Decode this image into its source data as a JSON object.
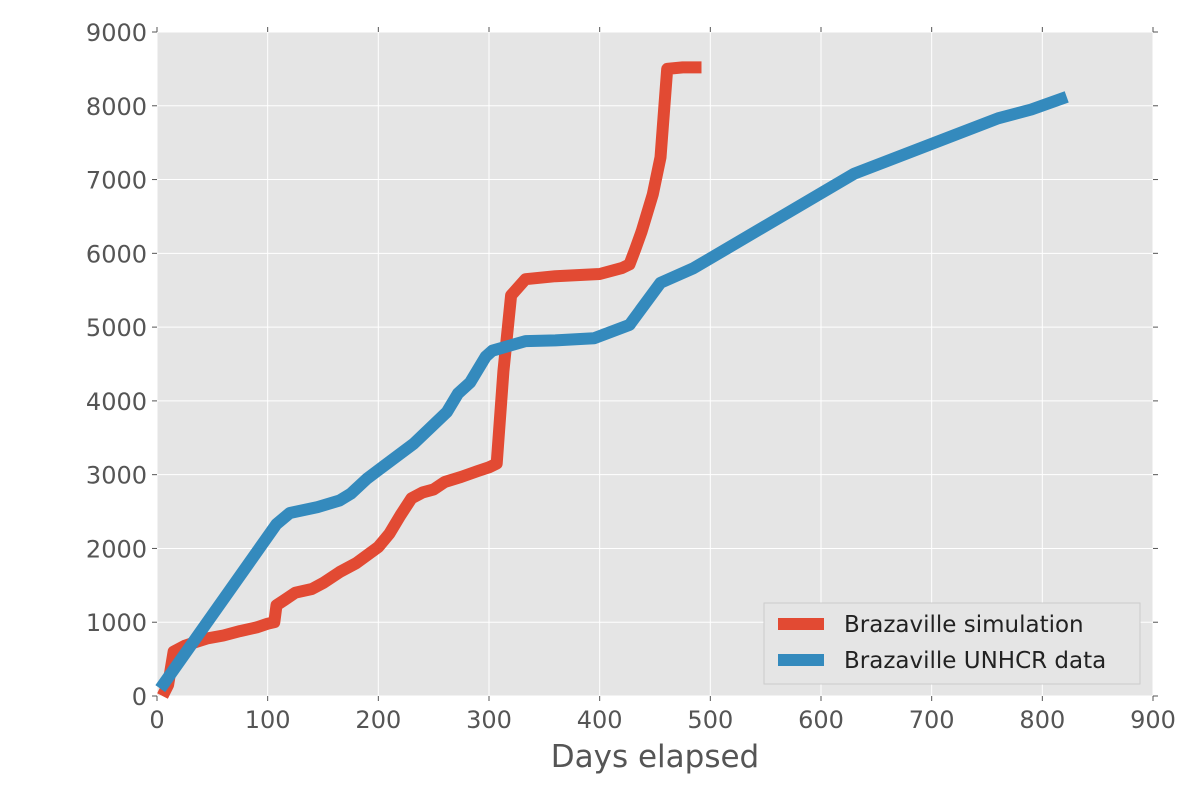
{
  "chart_data": {
    "type": "line",
    "title": "",
    "xlabel": "Days elapsed",
    "ylabel": "",
    "xlim": [
      0,
      900
    ],
    "ylim": [
      0,
      9000
    ],
    "xticks": [
      0,
      100,
      200,
      300,
      400,
      500,
      600,
      700,
      800,
      900
    ],
    "yticks": [
      0,
      1000,
      2000,
      3000,
      4000,
      5000,
      6000,
      7000,
      8000,
      9000
    ],
    "grid": true,
    "background": "#e5e5e5",
    "legend_position": "bottom-right",
    "series": [
      {
        "name": "Brazaville simulation",
        "color": "#e24a33",
        "points": [
          [
            5,
            0
          ],
          [
            10,
            150
          ],
          [
            15,
            600
          ],
          [
            25,
            680
          ],
          [
            35,
            730
          ],
          [
            45,
            780
          ],
          [
            60,
            820
          ],
          [
            75,
            880
          ],
          [
            90,
            930
          ],
          [
            100,
            980
          ],
          [
            106,
            1000
          ],
          [
            108,
            1230
          ],
          [
            115,
            1300
          ],
          [
            125,
            1400
          ],
          [
            140,
            1450
          ],
          [
            150,
            1530
          ],
          [
            165,
            1680
          ],
          [
            180,
            1800
          ],
          [
            200,
            2020
          ],
          [
            210,
            2200
          ],
          [
            220,
            2450
          ],
          [
            230,
            2680
          ],
          [
            240,
            2760
          ],
          [
            250,
            2800
          ],
          [
            260,
            2900
          ],
          [
            275,
            2970
          ],
          [
            290,
            3050
          ],
          [
            300,
            3100
          ],
          [
            307,
            3150
          ],
          [
            313,
            4400
          ],
          [
            320,
            5430
          ],
          [
            333,
            5650
          ],
          [
            360,
            5690
          ],
          [
            400,
            5720
          ],
          [
            420,
            5800
          ],
          [
            427,
            5850
          ],
          [
            432,
            6050
          ],
          [
            438,
            6300
          ],
          [
            448,
            6800
          ],
          [
            455,
            7300
          ],
          [
            461,
            8500
          ],
          [
            475,
            8520
          ],
          [
            492,
            8520
          ]
        ]
      },
      {
        "name": "Brazaville UNHCR data",
        "color": "#348abd",
        "points": [
          [
            3,
            100
          ],
          [
            10,
            250
          ],
          [
            108,
            2330
          ],
          [
            120,
            2480
          ],
          [
            145,
            2560
          ],
          [
            165,
            2650
          ],
          [
            175,
            2740
          ],
          [
            190,
            2950
          ],
          [
            232,
            3420
          ],
          [
            262,
            3850
          ],
          [
            272,
            4100
          ],
          [
            283,
            4250
          ],
          [
            297,
            4600
          ],
          [
            303,
            4680
          ],
          [
            333,
            4810
          ],
          [
            360,
            4820
          ],
          [
            395,
            4850
          ],
          [
            427,
            5030
          ],
          [
            455,
            5600
          ],
          [
            485,
            5800
          ],
          [
            630,
            7080
          ],
          [
            760,
            7830
          ],
          [
            790,
            7950
          ],
          [
            822,
            8120
          ]
        ]
      }
    ]
  }
}
